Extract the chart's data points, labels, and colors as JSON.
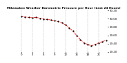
{
  "title": "Milwaukee Weather Barometric Pressure per Hour (Last 24 Hours)",
  "background_color": "#ffffff",
  "line_color": "#ff0000",
  "marker_color": "#000000",
  "grid_color": "#aaaaaa",
  "y_values": [
    30.05,
    30.04,
    30.03,
    30.02,
    30.03,
    30.01,
    29.99,
    29.98,
    29.97,
    29.95,
    29.93,
    29.9,
    29.85,
    29.78,
    29.7,
    29.6,
    29.5,
    29.42,
    29.38,
    29.35,
    29.38,
    29.42,
    29.45,
    29.48
  ],
  "ylim_min": 29.2,
  "ylim_max": 30.2,
  "yticks": [
    29.2,
    29.4,
    29.6,
    29.8,
    30.0,
    30.2
  ],
  "ytick_labels": [
    "29.20",
    "29.40",
    "29.60",
    "29.80",
    "30.00",
    "30.20"
  ],
  "n_points": 24,
  "title_fontsize": 3.2,
  "tick_fontsize": 2.8,
  "line_width": 0.6,
  "marker_size": 1.2,
  "grid_lw": 0.3
}
